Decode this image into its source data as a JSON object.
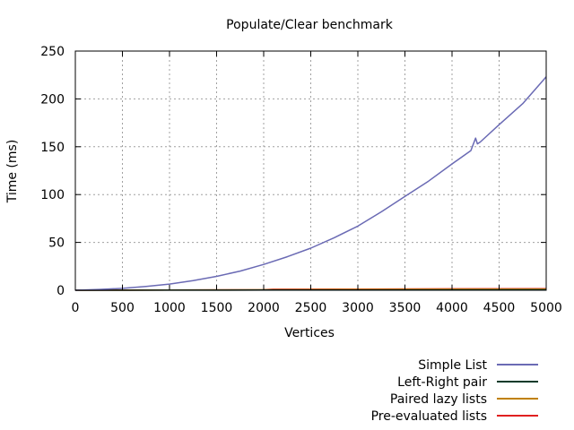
{
  "chart_data": {
    "type": "line",
    "title": "Populate/Clear benchmark",
    "xlabel": "Vertices",
    "ylabel": "Time (ms)",
    "xlim": [
      0,
      5000
    ],
    "ylim": [
      0,
      250
    ],
    "x_ticks": [
      0,
      500,
      1000,
      1500,
      2000,
      2500,
      3000,
      3500,
      4000,
      4500,
      5000
    ],
    "y_ticks": [
      0,
      50,
      100,
      150,
      200,
      250
    ],
    "grid": true,
    "legend_position": "bottom-right",
    "series": [
      {
        "name": "Simple List",
        "color": "#6a6ab4",
        "x": [
          0,
          250,
          500,
          750,
          1000,
          1250,
          1500,
          1750,
          2000,
          2250,
          2500,
          2750,
          3000,
          3250,
          3500,
          3750,
          4000,
          4200,
          4250,
          4270,
          4300,
          4500,
          4750,
          5000
        ],
        "y": [
          0,
          0.8,
          2,
          4,
          6.5,
          10,
          14.5,
          20,
          27,
          35,
          44,
          55,
          67,
          82,
          98,
          114,
          132,
          146,
          159,
          153,
          155,
          173,
          195,
          223
        ]
      },
      {
        "name": "Left-Right pair",
        "color": "#0a3a2a",
        "x": [
          0,
          1000,
          2000,
          3000,
          4000,
          5000
        ],
        "y": [
          0,
          0.1,
          0.2,
          0.3,
          0.4,
          0.5
        ]
      },
      {
        "name": "Paired lazy lists",
        "color": "#c08000",
        "x": [
          0,
          1000,
          2000,
          3000,
          4000,
          5000
        ],
        "y": [
          0,
          0.2,
          0.5,
          0.8,
          1.0,
          1.2
        ]
      },
      {
        "name": "Pre-evaluated lists",
        "color": "#e02020",
        "x": [
          0,
          1000,
          2000,
          2100,
          3000,
          4000,
          5000
        ],
        "y": [
          0,
          0.3,
          0.6,
          1.0,
          1.2,
          1.5,
          1.7
        ]
      }
    ]
  }
}
